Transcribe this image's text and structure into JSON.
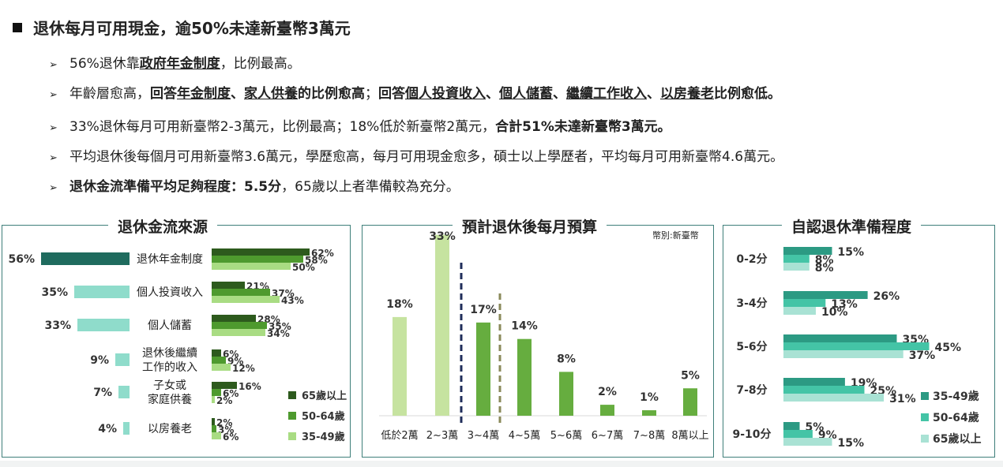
{
  "headline": "退休每月可用現金，逾50%未達新臺幣3萬元",
  "bullets": {
    "b1": {
      "p1": "56%退休靠",
      "u1": "政府年金制度",
      "p2": "，比例最高。"
    },
    "b2": {
      "p1": "年齡層愈高，",
      "s1": "回答",
      "u1": "年金制度",
      "s2": "、",
      "u2": "家人供養",
      "s3": "的比例愈高",
      "p2": "；",
      "s4": "回答",
      "u3": "個人投資收入",
      "s5": "、",
      "u4": "個人儲蓄",
      "s6": "、",
      "u5": "繼續工作收入",
      "s7": "、",
      "u6": "以房養老",
      "s8": "比例愈低。"
    },
    "b3": {
      "p1": "33%退休每月可用新臺幣2-3萬元，比例最高；18%低於新臺幣2萬元，",
      "s1": "合計51%未達新臺幣3萬元。"
    },
    "b4": {
      "p1": "平均退休後每個月可用新臺幣3.6萬元，學歷愈高，每月可用現金愈多，碩士以上學歷者，平均每月可用新臺幣4.6萬元。"
    },
    "b5": {
      "s1": "退休金流準備平均足夠程度：5.5分",
      "p1": "，65歲以上者準備較為充分。"
    }
  },
  "colors": {
    "dark_teal": "#1f6b5e",
    "light_teal": "#8fdccb",
    "green_dark": "#2d5a1d",
    "green_mid": "#4e9a2e",
    "green_light": "#a9dc83",
    "bar_green": "#66ad3f",
    "bar_light": "#c6e3a0",
    "teal1": "#2c9a83",
    "teal2": "#44c4a6",
    "teal3": "#a9e2d4"
  },
  "chart_data": [
    {
      "type": "bar",
      "title": "退休金流來源",
      "categories": [
        "退休年金制度",
        "個人投資收入",
        "個人儲蓄",
        "退休後繼續工作的收入",
        "子女或家庭供養",
        "以房養老"
      ],
      "category_lines": [
        [
          "退休年金制度"
        ],
        [
          "個人投資收入"
        ],
        [
          "個人儲蓄"
        ],
        [
          "退休後繼續",
          "工作的收入"
        ],
        [
          "子女或",
          "家庭供養"
        ],
        [
          "以房養老"
        ]
      ],
      "total": {
        "values": [
          56,
          35,
          33,
          9,
          7,
          4
        ],
        "labels": [
          "56%",
          "35%",
          "33%",
          "9%",
          "7%",
          "4%"
        ]
      },
      "series": [
        {
          "name": "65歲以上",
          "values": [
            62,
            21,
            28,
            6,
            16,
            2
          ],
          "labels": [
            "62%",
            "21%",
            "28%",
            "6%",
            "16%",
            "2%"
          ]
        },
        {
          "name": "50-64歲",
          "values": [
            58,
            37,
            35,
            9,
            6,
            3
          ],
          "labels": [
            "58%",
            "37%",
            "35%",
            "9%",
            "6%",
            "3%"
          ]
        },
        {
          "name": "35-49歲",
          "values": [
            50,
            43,
            34,
            12,
            2,
            6
          ],
          "labels": [
            "50%",
            "43%",
            "34%",
            "12%",
            "2%",
            "6%"
          ]
        }
      ],
      "legend": "bottom-right"
    },
    {
      "type": "bar",
      "title": "預計退休後每月預算",
      "unit_note": "幣別:新臺幣",
      "categories": [
        "低於2萬",
        "2~3萬",
        "3~4萬",
        "4~5萬",
        "5~6萬",
        "6~7萬",
        "7~8萬",
        "8萬以上"
      ],
      "values": [
        18,
        33,
        17,
        14,
        8,
        2,
        1,
        5
      ],
      "labels": [
        "18%",
        "33%",
        "17%",
        "14%",
        "8%",
        "2%",
        "1%",
        "5%"
      ]
    },
    {
      "type": "bar",
      "title": "自認退休準備程度",
      "categories": [
        "0-2分",
        "3-4分",
        "5-6分",
        "7-8分",
        "9-10分"
      ],
      "series": [
        {
          "name": "35-49歲",
          "values": [
            15,
            26,
            35,
            19,
            5
          ],
          "labels": [
            "15%",
            "26%",
            "35%",
            "19%",
            "5%"
          ]
        },
        {
          "name": "50-64歲",
          "values": [
            8,
            13,
            45,
            25,
            9
          ],
          "labels": [
            "8%",
            "13%",
            "45%",
            "25%",
            "9%"
          ]
        },
        {
          "name": "65歲以上",
          "values": [
            8,
            10,
            37,
            31,
            15
          ],
          "labels": [
            "8%",
            "10%",
            "37%",
            "31%",
            "15%"
          ]
        }
      ],
      "legend": "bottom-right"
    }
  ]
}
